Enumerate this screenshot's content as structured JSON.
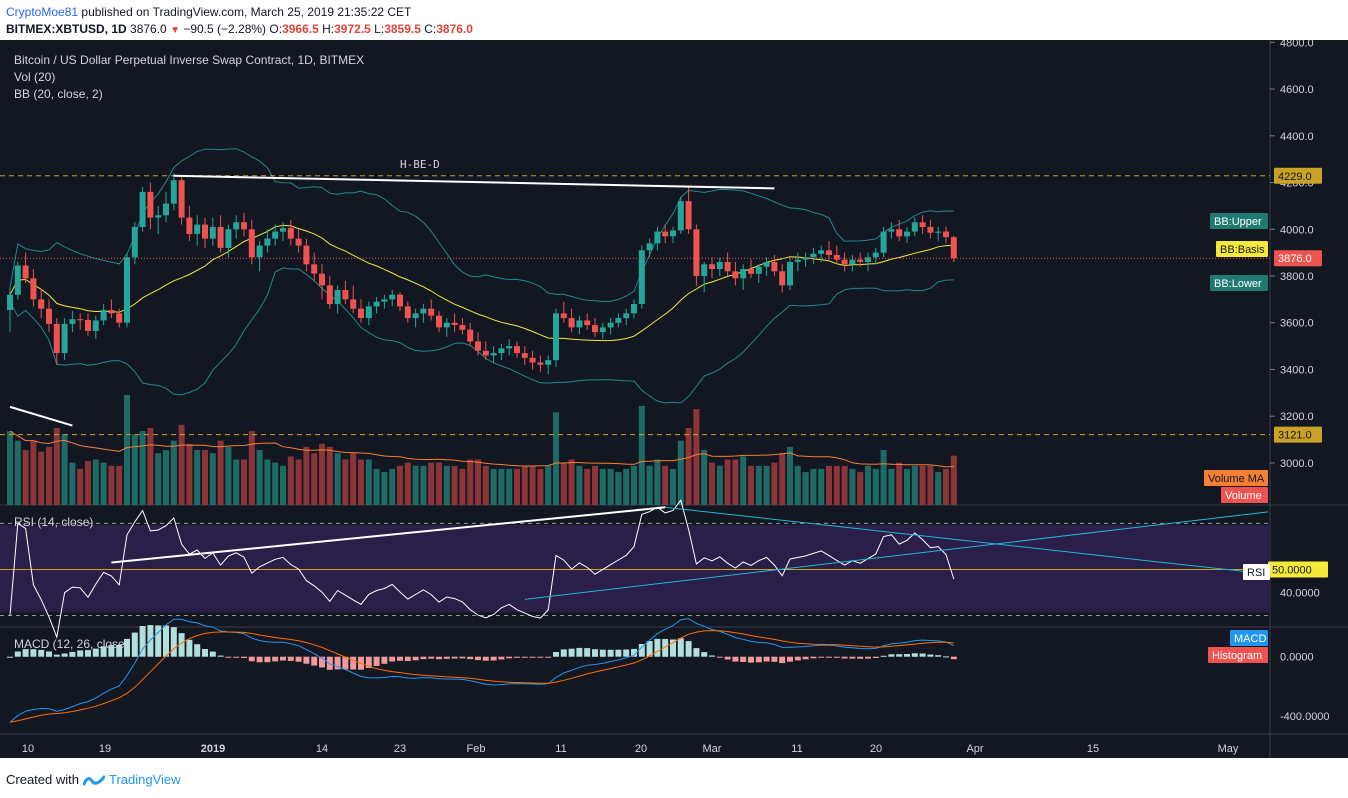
{
  "header": {
    "author": "CryptoMoe81",
    "published_text": "published on TradingView.com, March 25, 2019 21:35:22 CET",
    "symbol": "BITMEX:XBTUSD, 1D",
    "last": "3876.0",
    "change": "−90.5 (−2.28%)",
    "o_label": "O:",
    "o_val": "3966.5",
    "h_label": "H:",
    "h_val": "3972.5",
    "l_label": "L:",
    "l_val": "3859.5",
    "c_label": "C:",
    "c_val": "3876.0"
  },
  "legend": {
    "title": "Bitcoin / US Dollar Perpetual Inverse Swap Contract, 1D, BITMEX",
    "vol": "Vol (20)",
    "bb": "BB (20, close, 2)",
    "rsi": "RSI (14, close)",
    "macd": "MACD (12, 26, close)"
  },
  "annotation_text": "H-BE-D",
  "footer": {
    "created_with": "Created with",
    "brand": "TradingView"
  },
  "colors": {
    "up": "#26a69a",
    "down": "#ef5350",
    "bg": "#131722",
    "bb_band": "#1f8a8a",
    "bb_basis": "#f5e93b",
    "vol_ma": "#f57f33",
    "rsi_line": "#ffffff",
    "rsi_fill": "#2a1f49",
    "macd_line": "#2196f3",
    "signal": "#ff6d00",
    "hist": "#b2dfdb"
  },
  "chart_data": {
    "type": "candlestick",
    "price_axis": {
      "ticks": [
        "4800.0",
        "4600.0",
        "4400.0",
        "4200.0",
        "4000.0",
        "3800.0",
        "3600.0",
        "3400.0",
        "3200.0",
        "3000.0"
      ],
      "min": 2820,
      "max": 4810
    },
    "rsi_axis": {
      "ticks": [
        "40.0000"
      ],
      "min": 25,
      "max": 78
    },
    "macd_axis": {
      "ticks": [
        "0.0000",
        "-400.0000"
      ],
      "min": -520,
      "max": 200
    },
    "time_axis": [
      "10",
      "19",
      "2019",
      "14",
      "23",
      "Feb",
      "11",
      "20",
      "Mar",
      "11",
      "20",
      "Apr",
      "15",
      "May"
    ],
    "levels": [
      {
        "label": "4229.0",
        "value": 4229
      },
      {
        "label": "3121.0",
        "value": 3121
      }
    ],
    "price_tags": {
      "bb_upper": "BB:Upper",
      "bb_basis": "BB:Basis",
      "last": "3876.0",
      "bb_lower": "BB:Lower",
      "volume_ma": "Volume MA",
      "volume": "Volume",
      "rsi_mid": "50.0000",
      "rsi": "RSI",
      "macd": "MACD",
      "histogram": "Histogram"
    },
    "candles": [
      [
        3655,
        3750,
        3560,
        3720
      ],
      [
        3720,
        3860,
        3700,
        3845
      ],
      [
        3845,
        3900,
        3770,
        3790
      ],
      [
        3790,
        3830,
        3670,
        3700
      ],
      [
        3700,
        3745,
        3620,
        3660
      ],
      [
        3660,
        3700,
        3560,
        3595
      ],
      [
        3595,
        3620,
        3420,
        3470
      ],
      [
        3470,
        3620,
        3440,
        3595
      ],
      [
        3595,
        3650,
        3560,
        3615
      ],
      [
        3615,
        3640,
        3570,
        3612
      ],
      [
        3612,
        3640,
        3545,
        3565
      ],
      [
        3565,
        3630,
        3530,
        3610
      ],
      [
        3610,
        3680,
        3590,
        3655
      ],
      [
        3655,
        3700,
        3620,
        3640
      ],
      [
        3640,
        3660,
        3580,
        3600
      ],
      [
        3600,
        3900,
        3580,
        3880
      ],
      [
        3880,
        4030,
        3850,
        4010
      ],
      [
        4010,
        4180,
        3990,
        4160
      ],
      [
        4160,
        4200,
        4000,
        4050
      ],
      [
        4050,
        4100,
        3980,
        4060
      ],
      [
        4060,
        4160,
        4030,
        4110
      ],
      [
        4110,
        4240,
        4080,
        4210
      ],
      [
        4210,
        4230,
        4020,
        4050
      ],
      [
        4050,
        4100,
        3950,
        3980
      ],
      [
        3980,
        4060,
        3930,
        4020
      ],
      [
        4020,
        4050,
        3920,
        3960
      ],
      [
        3960,
        4050,
        3930,
        4010
      ],
      [
        4010,
        4060,
        3900,
        3920
      ],
      [
        3920,
        4020,
        3880,
        4000
      ],
      [
        4000,
        4060,
        3960,
        4030
      ],
      [
        4030,
        4070,
        3970,
        4000
      ],
      [
        4000,
        4040,
        3850,
        3880
      ],
      [
        3880,
        3950,
        3820,
        3930
      ],
      [
        3930,
        4000,
        3900,
        3960
      ],
      [
        3960,
        4020,
        3930,
        3990
      ],
      [
        3990,
        4030,
        3950,
        4005
      ],
      [
        4005,
        4040,
        3930,
        3960
      ],
      [
        3960,
        4000,
        3900,
        3930
      ],
      [
        3930,
        3960,
        3820,
        3850
      ],
      [
        3850,
        3900,
        3780,
        3810
      ],
      [
        3810,
        3850,
        3700,
        3760
      ],
      [
        3760,
        3800,
        3660,
        3680
      ],
      [
        3680,
        3760,
        3640,
        3740
      ],
      [
        3740,
        3780,
        3680,
        3700
      ],
      [
        3700,
        3760,
        3640,
        3660
      ],
      [
        3660,
        3700,
        3600,
        3620
      ],
      [
        3620,
        3690,
        3590,
        3670
      ],
      [
        3670,
        3710,
        3640,
        3690
      ],
      [
        3690,
        3720,
        3660,
        3700
      ],
      [
        3700,
        3740,
        3670,
        3720
      ],
      [
        3720,
        3730,
        3650,
        3670
      ],
      [
        3670,
        3690,
        3600,
        3620
      ],
      [
        3620,
        3660,
        3580,
        3640
      ],
      [
        3640,
        3680,
        3600,
        3660
      ],
      [
        3660,
        3700,
        3610,
        3630
      ],
      [
        3630,
        3650,
        3560,
        3580
      ],
      [
        3580,
        3620,
        3540,
        3600
      ],
      [
        3600,
        3640,
        3560,
        3590
      ],
      [
        3590,
        3620,
        3550,
        3570
      ],
      [
        3570,
        3600,
        3500,
        3520
      ],
      [
        3520,
        3560,
        3460,
        3480
      ],
      [
        3480,
        3520,
        3440,
        3460
      ],
      [
        3460,
        3500,
        3430,
        3470
      ],
      [
        3470,
        3510,
        3440,
        3490
      ],
      [
        3490,
        3530,
        3460,
        3500
      ],
      [
        3500,
        3520,
        3450,
        3470
      ],
      [
        3470,
        3500,
        3420,
        3450
      ],
      [
        3450,
        3480,
        3400,
        3430
      ],
      [
        3430,
        3460,
        3390,
        3420
      ],
      [
        3420,
        3460,
        3380,
        3440
      ],
      [
        3440,
        3660,
        3410,
        3640
      ],
      [
        3640,
        3690,
        3600,
        3620
      ],
      [
        3620,
        3660,
        3560,
        3580
      ],
      [
        3580,
        3630,
        3550,
        3610
      ],
      [
        3610,
        3640,
        3570,
        3590
      ],
      [
        3590,
        3620,
        3540,
        3560
      ],
      [
        3560,
        3600,
        3530,
        3580
      ],
      [
        3580,
        3620,
        3550,
        3600
      ],
      [
        3600,
        3640,
        3580,
        3620
      ],
      [
        3620,
        3660,
        3590,
        3640
      ],
      [
        3640,
        3700,
        3620,
        3680
      ],
      [
        3680,
        3930,
        3660,
        3910
      ],
      [
        3910,
        3960,
        3880,
        3940
      ],
      [
        3940,
        4010,
        3910,
        3990
      ],
      [
        3990,
        4020,
        3940,
        3970
      ],
      [
        3970,
        4010,
        3940,
        3995
      ],
      [
        3995,
        4140,
        3980,
        4120
      ],
      [
        4120,
        4180,
        3980,
        4000
      ],
      [
        4000,
        4020,
        3760,
        3800
      ],
      [
        3800,
        3860,
        3730,
        3850
      ],
      [
        3850,
        3880,
        3790,
        3830
      ],
      [
        3830,
        3880,
        3800,
        3860
      ],
      [
        3860,
        3900,
        3800,
        3820
      ],
      [
        3820,
        3860,
        3760,
        3790
      ],
      [
        3790,
        3850,
        3740,
        3830
      ],
      [
        3830,
        3870,
        3790,
        3810
      ],
      [
        3810,
        3850,
        3770,
        3840
      ],
      [
        3840,
        3880,
        3800,
        3860
      ],
      [
        3860,
        3890,
        3800,
        3820
      ],
      [
        3820,
        3850,
        3730,
        3760
      ],
      [
        3760,
        3880,
        3740,
        3860
      ],
      [
        3860,
        3900,
        3820,
        3870
      ],
      [
        3870,
        3900,
        3840,
        3880
      ],
      [
        3880,
        3920,
        3850,
        3895
      ],
      [
        3895,
        3930,
        3860,
        3910
      ],
      [
        3910,
        3950,
        3870,
        3890
      ],
      [
        3890,
        3930,
        3850,
        3870
      ],
      [
        3870,
        3900,
        3820,
        3850
      ],
      [
        3850,
        3890,
        3820,
        3870
      ],
      [
        3870,
        3900,
        3840,
        3860
      ],
      [
        3860,
        3900,
        3820,
        3880
      ],
      [
        3880,
        3920,
        3850,
        3900
      ],
      [
        3900,
        4010,
        3880,
        3990
      ],
      [
        3990,
        4030,
        3960,
        4000
      ],
      [
        4000,
        4040,
        3950,
        3970
      ],
      [
        3970,
        4010,
        3940,
        3990
      ],
      [
        3990,
        4050,
        3970,
        4030
      ],
      [
        4030,
        4060,
        3980,
        4010
      ],
      [
        4010,
        4040,
        3960,
        3985
      ],
      [
        3985,
        4010,
        3950,
        3990
      ],
      [
        3990,
        4010,
        3940,
        3966
      ],
      [
        3966,
        3972,
        3860,
        3876
      ]
    ],
    "trendlines": [
      {
        "name": "H-BE-D",
        "from": [
          21,
          4229
        ],
        "to": [
          98,
          4175
        ]
      },
      {
        "name": "left-trend",
        "from": [
          0,
          3240
        ],
        "to": [
          8,
          3160
        ]
      }
    ]
  }
}
